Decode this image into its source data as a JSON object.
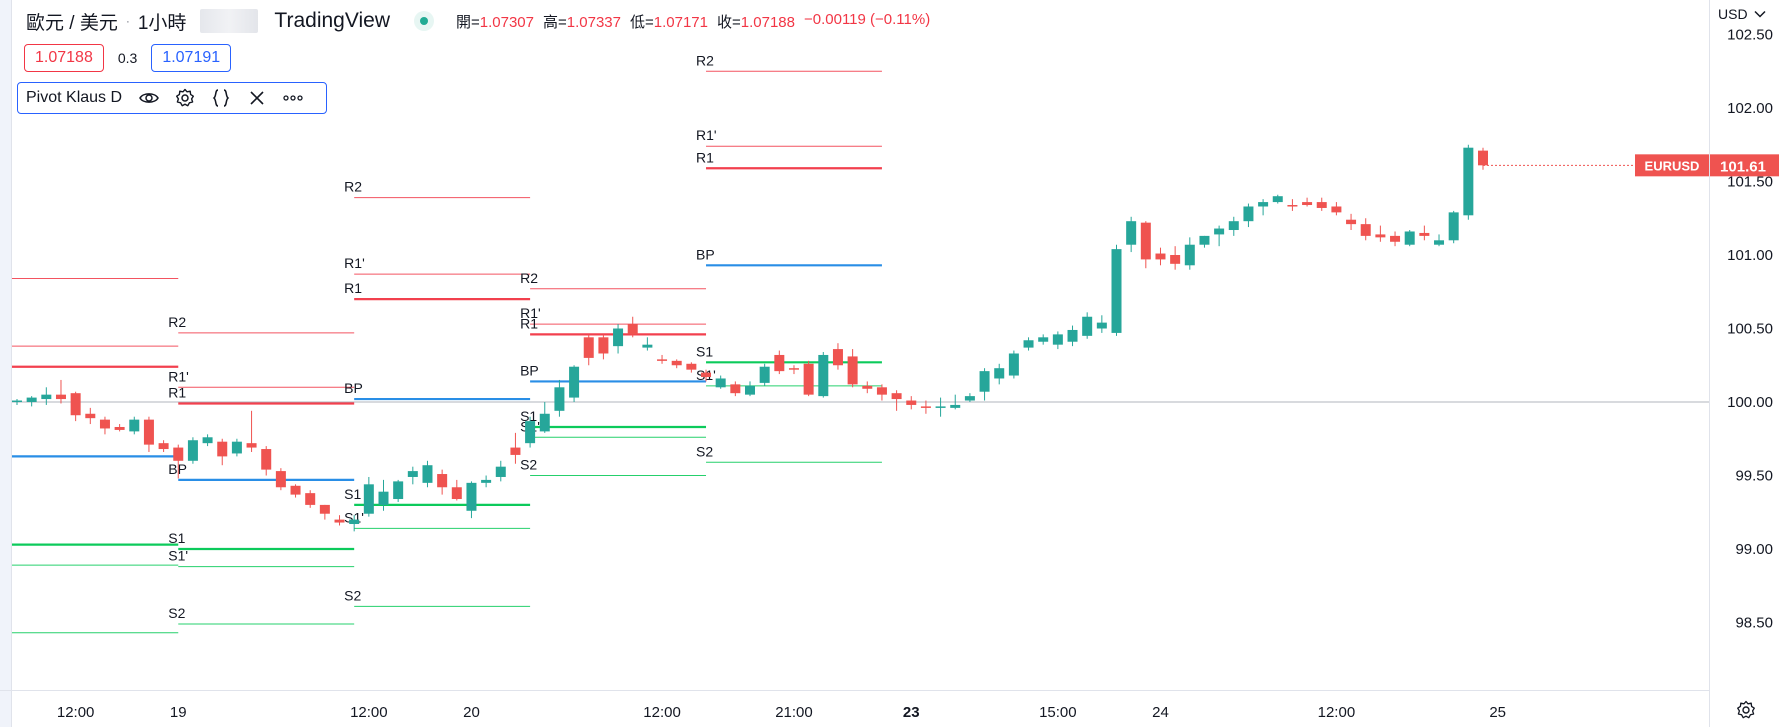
{
  "header": {
    "symbol": "歐元 / 美元",
    "interval": "1小時",
    "brand": "TradingView",
    "ohlc": {
      "open_label": "開=",
      "open": "1.07307",
      "high_label": "高=",
      "high": "1.07337",
      "low_label": "低=",
      "low": "1.07171",
      "close_label": "收=",
      "close": "1.07188",
      "change": "−0.00119 (−0.11%)"
    }
  },
  "trade": {
    "sell": "1.07188",
    "spread": "0.3",
    "buy": "1.07191"
  },
  "indicator": {
    "name": "Pivot Klaus D"
  },
  "currency": "USD",
  "last_price": {
    "symbol": "EURUSD",
    "value": "101.61"
  },
  "colors": {
    "up": "#26a69a",
    "down": "#ef5350",
    "resistance": "#f23645",
    "support": "#00c853",
    "pivot": "#1e88e5"
  },
  "chart_data": {
    "type": "candlestick",
    "ylim": [
      98.05,
      102.55
    ],
    "y_ticks": [
      "98.50",
      "99.00",
      "99.50",
      "100.00",
      "100.50",
      "101.00",
      "101.50",
      "102.00",
      "102.50"
    ],
    "x_ticks": [
      {
        "label": "12:00",
        "i": 4
      },
      {
        "label": "19",
        "i": 11
      },
      {
        "label": "12:00",
        "i": 24
      },
      {
        "label": "20",
        "i": 31
      },
      {
        "label": "12:00",
        "i": 44
      },
      {
        "label": "21:00",
        "i": 53
      },
      {
        "label": "23",
        "i": 61
      },
      {
        "label": "15:00",
        "i": 71
      },
      {
        "label": "24",
        "i": 78
      },
      {
        "label": "12:00",
        "i": 90
      },
      {
        "label": "25",
        "i": 101
      }
    ],
    "reference_line": 100.0,
    "candles": [
      [
        100.0,
        100.02,
        99.98,
        100.01
      ],
      [
        100.0,
        100.04,
        99.97,
        100.03
      ],
      [
        100.02,
        100.1,
        99.98,
        100.05
      ],
      [
        100.05,
        100.15,
        99.99,
        100.02
      ],
      [
        100.06,
        100.07,
        99.87,
        99.91
      ],
      [
        99.92,
        99.96,
        99.85,
        99.89
      ],
      [
        99.88,
        99.9,
        99.78,
        99.82
      ],
      [
        99.83,
        99.85,
        99.8,
        99.81
      ],
      [
        99.8,
        99.9,
        99.78,
        99.88
      ],
      [
        99.88,
        99.9,
        99.66,
        99.71
      ],
      [
        99.72,
        99.74,
        99.66,
        99.68
      ],
      [
        99.69,
        99.71,
        99.48,
        99.6
      ],
      [
        99.6,
        99.76,
        99.58,
        99.74
      ],
      [
        99.72,
        99.78,
        99.7,
        99.76
      ],
      [
        99.73,
        99.75,
        99.57,
        99.63
      ],
      [
        99.65,
        99.75,
        99.63,
        99.73
      ],
      [
        99.72,
        99.94,
        99.66,
        99.69
      ],
      [
        99.68,
        99.7,
        99.5,
        99.54
      ],
      [
        99.53,
        99.55,
        99.4,
        99.42
      ],
      [
        99.43,
        99.44,
        99.35,
        99.37
      ],
      [
        99.38,
        99.4,
        99.28,
        99.3
      ],
      [
        99.3,
        99.3,
        99.2,
        99.24
      ],
      [
        99.2,
        99.23,
        99.16,
        99.18
      ],
      [
        99.17,
        99.23,
        99.12,
        99.2
      ],
      [
        99.24,
        99.49,
        99.22,
        99.44
      ],
      [
        99.3,
        99.47,
        99.26,
        99.39
      ],
      [
        99.34,
        99.47,
        99.32,
        99.46
      ],
      [
        99.49,
        99.56,
        99.44,
        99.53
      ],
      [
        99.45,
        99.6,
        99.42,
        99.57
      ],
      [
        99.51,
        99.54,
        99.37,
        99.42
      ],
      [
        99.42,
        99.47,
        99.33,
        99.34
      ],
      [
        99.26,
        99.46,
        99.21,
        99.45
      ],
      [
        99.45,
        99.5,
        99.42,
        99.47
      ],
      [
        99.49,
        99.6,
        99.46,
        99.56
      ],
      [
        99.69,
        99.79,
        99.58,
        99.64
      ],
      [
        99.72,
        99.9,
        99.69,
        99.87
      ],
      [
        99.8,
        100.0,
        99.79,
        99.92
      ],
      [
        99.94,
        100.15,
        99.9,
        100.1
      ],
      [
        100.03,
        100.25,
        100.0,
        100.24
      ],
      [
        100.44,
        100.46,
        100.25,
        100.3
      ],
      [
        100.44,
        100.46,
        100.29,
        100.33
      ],
      [
        100.38,
        100.53,
        100.33,
        100.5
      ],
      [
        100.53,
        100.58,
        100.44,
        100.46
      ],
      [
        100.37,
        100.44,
        100.35,
        100.39
      ],
      [
        100.29,
        100.32,
        100.26,
        100.28
      ],
      [
        100.28,
        100.29,
        100.23,
        100.25
      ],
      [
        100.26,
        100.27,
        100.2,
        100.22
      ],
      [
        100.2,
        100.22,
        100.14,
        100.17
      ],
      [
        100.1,
        100.18,
        100.09,
        100.16
      ],
      [
        100.12,
        100.14,
        100.04,
        100.06
      ],
      [
        100.05,
        100.14,
        100.04,
        100.11
      ],
      [
        100.13,
        100.26,
        100.11,
        100.24
      ],
      [
        100.32,
        100.35,
        100.19,
        100.21
      ],
      [
        100.23,
        100.25,
        100.19,
        100.22
      ],
      [
        100.26,
        100.28,
        100.04,
        100.05
      ],
      [
        100.04,
        100.34,
        100.03,
        100.32
      ],
      [
        100.36,
        100.4,
        100.22,
        100.25
      ],
      [
        100.31,
        100.36,
        100.1,
        100.12
      ],
      [
        100.11,
        100.14,
        100.06,
        100.09
      ],
      [
        100.1,
        100.12,
        100.01,
        100.05
      ],
      [
        100.06,
        100.08,
        99.94,
        100.02
      ],
      [
        100.01,
        100.04,
        99.95,
        99.98
      ],
      [
        99.97,
        100.01,
        99.92,
        99.96
      ],
      [
        99.96,
        100.03,
        99.9,
        99.97
      ],
      [
        99.96,
        100.05,
        99.95,
        99.98
      ],
      [
        100.01,
        100.06,
        100.0,
        100.04
      ],
      [
        100.07,
        100.23,
        100.01,
        100.21
      ],
      [
        100.16,
        100.26,
        100.12,
        100.23
      ],
      [
        100.18,
        100.35,
        100.16,
        100.33
      ],
      [
        100.37,
        100.44,
        100.35,
        100.42
      ],
      [
        100.41,
        100.46,
        100.39,
        100.44
      ],
      [
        100.39,
        100.48,
        100.36,
        100.46
      ],
      [
        100.41,
        100.52,
        100.38,
        100.49
      ],
      [
        100.45,
        100.61,
        100.43,
        100.58
      ],
      [
        100.5,
        100.59,
        100.47,
        100.54
      ],
      [
        100.47,
        101.07,
        100.45,
        101.04
      ],
      [
        101.07,
        101.26,
        101.02,
        101.23
      ],
      [
        101.22,
        101.23,
        100.91,
        100.97
      ],
      [
        101.01,
        101.05,
        100.93,
        100.97
      ],
      [
        101.0,
        101.06,
        100.9,
        100.94
      ],
      [
        100.93,
        101.12,
        100.9,
        101.07
      ],
      [
        101.07,
        101.13,
        101.05,
        101.13
      ],
      [
        101.14,
        101.2,
        101.06,
        101.18
      ],
      [
        101.17,
        101.26,
        101.13,
        101.23
      ],
      [
        101.23,
        101.35,
        101.19,
        101.33
      ],
      [
        101.33,
        101.38,
        101.27,
        101.36
      ],
      [
        101.36,
        101.41,
        101.35,
        101.4
      ],
      [
        101.34,
        101.38,
        101.3,
        101.33
      ],
      [
        101.36,
        101.39,
        101.33,
        101.34
      ],
      [
        101.36,
        101.39,
        101.3,
        101.32
      ],
      [
        101.33,
        101.36,
        101.27,
        101.29
      ],
      [
        101.24,
        101.28,
        101.17,
        101.21
      ],
      [
        101.21,
        101.25,
        101.1,
        101.13
      ],
      [
        101.14,
        101.2,
        101.09,
        101.12
      ],
      [
        101.13,
        101.16,
        101.06,
        101.09
      ],
      [
        101.07,
        101.17,
        101.06,
        101.16
      ],
      [
        101.15,
        101.2,
        101.1,
        101.13
      ],
      [
        101.07,
        101.14,
        101.06,
        101.1
      ],
      [
        101.1,
        101.3,
        101.08,
        101.29
      ],
      [
        101.27,
        101.75,
        101.24,
        101.73
      ],
      [
        101.71,
        101.73,
        101.58,
        101.61
      ]
    ],
    "pivot_sections": [
      {
        "i0": -1,
        "i1": 11,
        "levels": [
          {
            "label": "",
            "value": 100.84,
            "kind": "res",
            "w": 1
          },
          {
            "label": "",
            "value": 100.38,
            "kind": "res",
            "w": 1
          },
          {
            "label": "",
            "value": 100.24,
            "kind": "res",
            "w": 2
          },
          {
            "label": "",
            "value": 99.63,
            "kind": "pivot",
            "w": 2
          },
          {
            "label": "",
            "value": 99.03,
            "kind": "sup",
            "w": 2
          },
          {
            "label": "",
            "value": 98.89,
            "kind": "sup",
            "w": 1
          },
          {
            "label": "",
            "value": 98.43,
            "kind": "sup",
            "w": 1
          }
        ]
      },
      {
        "i0": 11,
        "i1": 23,
        "levels": [
          {
            "label": "R2",
            "value": 100.47,
            "kind": "res",
            "w": 1
          },
          {
            "label": "R1'",
            "value": 100.1,
            "kind": "res",
            "w": 1
          },
          {
            "label": "R1",
            "value": 99.99,
            "kind": "res",
            "w": 2
          },
          {
            "label": "BP",
            "value": 99.47,
            "kind": "pivot",
            "w": 2
          },
          {
            "label": "S1",
            "value": 99.0,
            "kind": "sup",
            "w": 2
          },
          {
            "label": "S1'",
            "value": 98.88,
            "kind": "sup",
            "w": 1
          },
          {
            "label": "S2",
            "value": 98.49,
            "kind": "sup",
            "w": 1
          }
        ]
      },
      {
        "i0": 23,
        "i1": 35,
        "levels": [
          {
            "label": "R2",
            "value": 101.39,
            "kind": "res",
            "w": 1
          },
          {
            "label": "R1'",
            "value": 100.87,
            "kind": "res",
            "w": 1
          },
          {
            "label": "R1",
            "value": 100.7,
            "kind": "res",
            "w": 2
          },
          {
            "label": "BP",
            "value": 100.02,
            "kind": "pivot",
            "w": 2
          },
          {
            "label": "S1",
            "value": 99.3,
            "kind": "sup",
            "w": 2
          },
          {
            "label": "S1'",
            "value": 99.14,
            "kind": "sup",
            "w": 1
          },
          {
            "label": "S2",
            "value": 98.61,
            "kind": "sup",
            "w": 1
          }
        ]
      },
      {
        "i0": 35,
        "i1": 47,
        "levels": [
          {
            "label": "R2",
            "value": 100.77,
            "kind": "res",
            "w": 1
          },
          {
            "label": "R1'",
            "value": 100.53,
            "kind": "res",
            "w": 1
          },
          {
            "label": "R1",
            "value": 100.46,
            "kind": "res",
            "w": 2
          },
          {
            "label": "BP",
            "value": 100.14,
            "kind": "pivot",
            "w": 2
          },
          {
            "label": "S1",
            "value": 99.83,
            "kind": "sup",
            "w": 2
          },
          {
            "label": "S1'",
            "value": 99.76,
            "kind": "sup",
            "w": 1
          },
          {
            "label": "S2",
            "value": 99.5,
            "kind": "sup",
            "w": 1
          }
        ]
      },
      {
        "i0": 47,
        "i1": 59,
        "levels": [
          {
            "label": "R2",
            "value": 102.25,
            "kind": "res",
            "w": 1
          },
          {
            "label": "R1'",
            "value": 101.74,
            "kind": "res",
            "w": 1
          },
          {
            "label": "R1",
            "value": 101.59,
            "kind": "res",
            "w": 2
          },
          {
            "label": "BP",
            "value": 100.93,
            "kind": "pivot",
            "w": 2
          },
          {
            "label": "S1",
            "value": 100.27,
            "kind": "sup",
            "w": 2
          },
          {
            "label": "S1'",
            "value": 100.11,
            "kind": "sup",
            "w": 1
          },
          {
            "label": "S2",
            "value": 99.59,
            "kind": "sup",
            "w": 1
          }
        ]
      }
    ]
  }
}
